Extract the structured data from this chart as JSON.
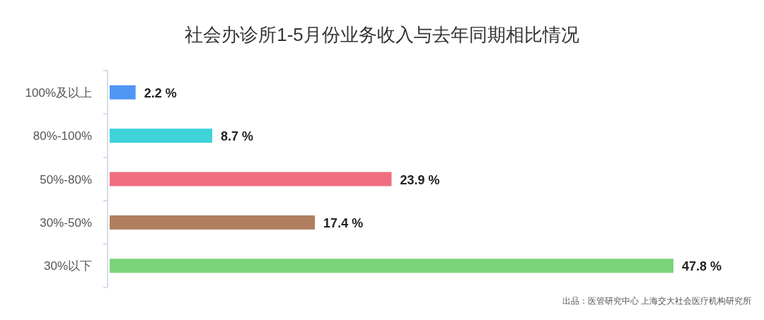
{
  "chart_data": {
    "type": "bar",
    "orientation": "horizontal",
    "title": "社会办诊所1-5月份业务收入与去年同期相比情况",
    "categories": [
      "100%及以上",
      "80%-100%",
      "50%-80%",
      "30%-50%",
      "30%以下"
    ],
    "values": [
      2.2,
      8.7,
      23.9,
      17.4,
      47.8
    ],
    "colors": [
      "#5096f4",
      "#3dd3d9",
      "#f16e7e",
      "#b07f5f",
      "#7bd37a"
    ],
    "value_labels": [
      "2.2 %",
      "8.7 %",
      "23.9 %",
      "17.4 %",
      "47.8 %"
    ],
    "annotations": [
      "出品：医管研究中心  上海交大社会医疗机构研究所"
    ]
  }
}
